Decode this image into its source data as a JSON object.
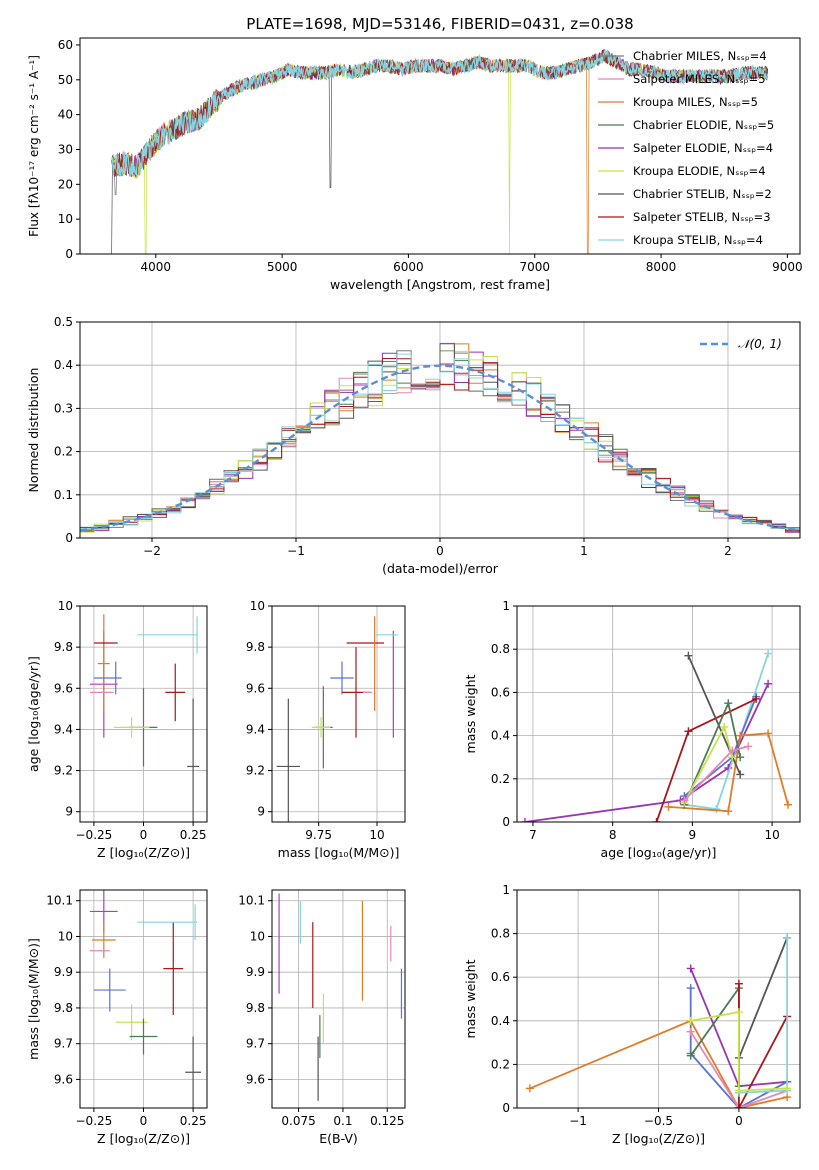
{
  "figure_title": "PLATE=1698, MJD=53146, FIBERID=0431, z=0.038",
  "model_colors": [
    "#7a7a7a",
    "#e887b6",
    "#e07b28",
    "#4f7a55",
    "#9a32b4",
    "#c8e34a",
    "#555555",
    "#a8171c",
    "#86d4e0"
  ],
  "chart_data": [
    {
      "id": "spectrum",
      "type": "line",
      "title": "PLATE=1698, MJD=53146, FIBERID=0431, z=0.038",
      "xlabel": "wavelength [Angstrom, rest frame]",
      "ylabel": "Flux [fλ10⁻¹⁷ erg cm⁻² s⁻¹ A⁻¹]",
      "xlim": [
        3400,
        9100
      ],
      "ylim": [
        0,
        62
      ],
      "xticks": [
        4000,
        5000,
        6000,
        7000,
        8000,
        9000
      ],
      "yticks": [
        0,
        10,
        20,
        30,
        40,
        50,
        60
      ],
      "legend_position": "upper right",
      "legend": [
        "Chabrier MILES, Nₛₛₚ=4",
        "Salpeter MILES, Nₛₛₚ=5",
        "Kroupa MILES, Nₛₛₚ=5",
        "Chabrier ELODIE, Nₛₛₚ=5",
        "Salpeter ELODIE, Nₛₛₚ=4",
        "Kroupa ELODIE, Nₛₛₚ=4",
        "Chabrier STELIB, Nₛₛₚ=2",
        "Salpeter STELIB, Nₛₛₚ=3",
        "Kroupa STELIB, Nₛₛₚ=4"
      ],
      "continuum": [
        [
          3650,
          25
        ],
        [
          3750,
          26
        ],
        [
          3850,
          25
        ],
        [
          3950,
          30
        ],
        [
          4050,
          34
        ],
        [
          4150,
          36
        ],
        [
          4250,
          38
        ],
        [
          4350,
          39
        ],
        [
          4450,
          43
        ],
        [
          4550,
          46
        ],
        [
          4650,
          48
        ],
        [
          4750,
          49
        ],
        [
          4850,
          50
        ],
        [
          4950,
          51
        ],
        [
          5050,
          53
        ],
        [
          5150,
          52
        ],
        [
          5250,
          52
        ],
        [
          5350,
          52
        ],
        [
          5450,
          53
        ],
        [
          5550,
          52
        ],
        [
          5650,
          53
        ],
        [
          5750,
          54
        ],
        [
          5850,
          54
        ],
        [
          5950,
          53
        ],
        [
          6050,
          54
        ],
        [
          6150,
          54
        ],
        [
          6250,
          54
        ],
        [
          6350,
          53
        ],
        [
          6450,
          54
        ],
        [
          6550,
          55
        ],
        [
          6650,
          54
        ],
        [
          6750,
          54
        ],
        [
          6850,
          54
        ],
        [
          6950,
          54
        ],
        [
          7050,
          52
        ],
        [
          7150,
          52
        ],
        [
          7250,
          53
        ],
        [
          7350,
          54
        ],
        [
          7450,
          55
        ],
        [
          7550,
          57
        ],
        [
          7650,
          55
        ],
        [
          7750,
          53
        ],
        [
          7850,
          53
        ],
        [
          7950,
          52
        ],
        [
          8050,
          51
        ],
        [
          8150,
          51
        ],
        [
          8250,
          51
        ],
        [
          8350,
          51
        ],
        [
          8450,
          51
        ],
        [
          8550,
          51
        ],
        [
          8650,
          52
        ],
        [
          8750,
          52
        ],
        [
          8850,
          52
        ]
      ],
      "drops": [
        {
          "model": 6,
          "x": 3650,
          "y": 0
        },
        {
          "model": 0,
          "x": 3680,
          "y": 17
        },
        {
          "model": 5,
          "x": 3920,
          "y": 0
        },
        {
          "model": 6,
          "x": 5380,
          "y": 19
        },
        {
          "model": 5,
          "x": 6800,
          "y": 0
        },
        {
          "model": 2,
          "x": 7420,
          "y": 0
        }
      ]
    },
    {
      "id": "residuals",
      "type": "step",
      "xlabel": "(data-model)/error",
      "ylabel": "Normed distribution",
      "xlim": [
        -2.5,
        2.5
      ],
      "ylim": [
        0,
        0.5
      ],
      "xticks": [
        -2,
        -1,
        0,
        1,
        2
      ],
      "yticks": [
        0.0,
        0.1,
        0.2,
        0.3,
        0.4,
        0.5
      ],
      "legend_position": "upper right",
      "grid": true,
      "reference_curve": {
        "name": "𝒩(0, 1)",
        "mean": 0,
        "sigma": 1,
        "color": "#5a8fd6"
      },
      "bin_width": 0.1
    },
    {
      "id": "age-vs-Z",
      "type": "errorbar",
      "xlabel": "Z [log₁₀(Z/Z⊙)]",
      "ylabel": "age  [log₁₀(age/yr)]",
      "xlim": [
        -0.32,
        0.32
      ],
      "ylim": [
        8.95,
        10.0
      ],
      "xticks": [
        -0.25,
        0.0,
        0.25
      ],
      "yticks": [
        9.0,
        9.2,
        9.4,
        9.6,
        9.8,
        10.0
      ],
      "grid": true,
      "points": [
        {
          "c": "#b03cc0",
          "x": -0.2,
          "y": 9.62,
          "xe": 0.07,
          "ye": 0.26
        },
        {
          "c": "#e07b28",
          "x": -0.2,
          "y": 9.72,
          "xe": 0.03,
          "ye": 0.24
        },
        {
          "c": "#a8171c",
          "x": -0.19,
          "y": 9.82,
          "xe": 0.06,
          "ye": 0.0
        },
        {
          "c": "#5a73d4",
          "x": -0.18,
          "y": 9.65,
          "xe": 0.07,
          "ye": 0.0
        },
        {
          "c": "#4f7a55",
          "x": 0.0,
          "y": 9.41,
          "xe": 0.07,
          "ye": 0.19
        },
        {
          "c": "#c8e34a",
          "x": -0.06,
          "y": 9.41,
          "xe": 0.09,
          "ye": 0.05
        },
        {
          "c": "#a8171c",
          "x": 0.16,
          "y": 9.58,
          "xe": 0.05,
          "ye": 0.14
        },
        {
          "c": "#86d4e0",
          "x": 0.12,
          "y": 9.86,
          "xe": 0.15,
          "ye": 0.0
        },
        {
          "c": "#86d4e0",
          "x": 0.27,
          "y": 9.86,
          "xe": 0.0,
          "ye": 0.09
        },
        {
          "c": "#555555",
          "x": 0.25,
          "y": 9.22,
          "xe": 0.03,
          "ye": 0.33
        },
        {
          "c": "#e887b6",
          "x": -0.21,
          "y": 9.58,
          "xe": 0.06,
          "ye": 0.0
        },
        {
          "c": "#5a73d4",
          "x": -0.14,
          "y": 9.65,
          "xe": 0.0,
          "ye": 0.08
        }
      ]
    },
    {
      "id": "age-vs-mass",
      "type": "errorbar",
      "xlabel": "mass [log₁₀(M/M⊙)]",
      "ylabel": "",
      "xlim": [
        9.55,
        10.12
      ],
      "ylim": [
        8.95,
        10.0
      ],
      "xticks": [
        9.75,
        10.0
      ],
      "yticks": [
        9.0,
        9.2,
        9.4,
        9.6,
        9.8,
        10.0
      ],
      "grid": true,
      "points": [
        {
          "c": "#555555",
          "x": 9.62,
          "y": 9.22,
          "xe": 0.05,
          "ye": 0.33
        },
        {
          "c": "#4f7a55",
          "x": 9.77,
          "y": 9.41,
          "xe": 0.04,
          "ye": 0.2
        },
        {
          "c": "#c8e34a",
          "x": 9.76,
          "y": 9.41,
          "xe": 0.04,
          "ye": 0.05
        },
        {
          "c": "#5a73d4",
          "x": 9.85,
          "y": 9.65,
          "xe": 0.05,
          "ye": 0.08
        },
        {
          "c": "#a8171c",
          "x": 9.91,
          "y": 9.58,
          "xe": 0.06,
          "ye": 0.22
        },
        {
          "c": "#a8171c",
          "x": 9.95,
          "y": 9.82,
          "xe": 0.08,
          "ye": 0.0
        },
        {
          "c": "#e07b28",
          "x": 9.99,
          "y": 9.72,
          "xe": 0.0,
          "ye": 0.23
        },
        {
          "c": "#b03cc0",
          "x": 10.07,
          "y": 9.62,
          "xe": 0.0,
          "ye": 0.26
        },
        {
          "c": "#86d4e0",
          "x": 10.04,
          "y": 9.86,
          "xe": 0.05,
          "ye": 0.0
        },
        {
          "c": "#e887b6",
          "x": 9.96,
          "y": 9.58,
          "xe": 0.02,
          "ye": 0.0
        }
      ]
    },
    {
      "id": "weight-vs-age",
      "type": "line",
      "xlabel": "age  [log₁₀(age/yr)]",
      "ylabel": "mass weight",
      "xlim": [
        6.8,
        10.35
      ],
      "ylim": [
        0,
        1.0
      ],
      "xticks": [
        7,
        8,
        9,
        10
      ],
      "yticks": [
        0.0,
        0.2,
        0.4,
        0.6,
        0.8,
        1.0
      ],
      "grid": true,
      "series": [
        {
          "c": "#9a32b4",
          "pts": [
            [
              6.9,
              0.0
            ],
            [
              8.85,
              0.1
            ],
            [
              9.45,
              0.25
            ],
            [
              9.95,
              0.64
            ]
          ]
        },
        {
          "c": "#86d4e0",
          "pts": [
            [
              8.9,
              0.08
            ],
            [
              9.3,
              0.06
            ],
            [
              9.95,
              0.78
            ]
          ]
        },
        {
          "c": "#5a73d4",
          "pts": [
            [
              8.9,
              0.12
            ],
            [
              9.5,
              0.3
            ],
            [
              9.8,
              0.58
            ]
          ]
        },
        {
          "c": "#e07b28",
          "pts": [
            [
              8.7,
              0.07
            ],
            [
              9.45,
              0.05
            ],
            [
              9.6,
              0.4
            ],
            [
              9.95,
              0.41
            ],
            [
              10.2,
              0.08
            ]
          ]
        },
        {
          "c": "#a8171c",
          "pts": [
            [
              8.55,
              0.0
            ],
            [
              8.95,
              0.42
            ],
            [
              9.8,
              0.57
            ]
          ]
        },
        {
          "c": "#555555",
          "pts": [
            [
              8.95,
              0.77
            ],
            [
              9.6,
              0.22
            ]
          ]
        },
        {
          "c": "#4f7a55",
          "pts": [
            [
              8.9,
              0.08
            ],
            [
              9.45,
              0.55
            ],
            [
              9.6,
              0.3
            ]
          ]
        },
        {
          "c": "#c8e34a",
          "pts": [
            [
              8.9,
              0.09
            ],
            [
              9.4,
              0.44
            ],
            [
              9.5,
              0.3
            ]
          ]
        },
        {
          "c": "#e887b6",
          "pts": [
            [
              8.9,
              0.1
            ],
            [
              9.5,
              0.33
            ],
            [
              9.7,
              0.35
            ]
          ]
        }
      ]
    },
    {
      "id": "mass-vs-Z",
      "type": "errorbar",
      "xlabel": "Z [log₁₀(Z/Z⊙)]",
      "ylabel": "mass [log₁₀(M/M⊙)]",
      "xlim": [
        -0.32,
        0.32
      ],
      "ylim": [
        9.52,
        10.13
      ],
      "xticks": [
        -0.25,
        0.0,
        0.25
      ],
      "yticks": [
        9.6,
        9.7,
        9.8,
        9.9,
        10.0,
        10.1
      ],
      "grid": true,
      "points": [
        {
          "c": "#b03cc0",
          "x": -0.2,
          "y": 10.07,
          "xe": 0.07,
          "ye": 0.06
        },
        {
          "c": "#e07b28",
          "x": -0.2,
          "y": 9.99,
          "xe": 0.06,
          "ye": 0.05
        },
        {
          "c": "#e887b6",
          "x": -0.22,
          "y": 9.96,
          "xe": 0.05,
          "ye": 0.0
        },
        {
          "c": "#5a73d4",
          "x": -0.17,
          "y": 9.85,
          "xe": 0.08,
          "ye": 0.06
        },
        {
          "c": "#c8e34a",
          "x": -0.06,
          "y": 9.76,
          "xe": 0.08,
          "ye": 0.05
        },
        {
          "c": "#4f7a55",
          "x": 0.0,
          "y": 9.72,
          "xe": 0.07,
          "ye": 0.05
        },
        {
          "c": "#a8171c",
          "x": 0.15,
          "y": 9.91,
          "xe": 0.05,
          "ye": 0.13
        },
        {
          "c": "#86d4e0",
          "x": 0.12,
          "y": 10.04,
          "xe": 0.15,
          "ye": 0.0
        },
        {
          "c": "#86d4e0",
          "x": 0.26,
          "y": 10.04,
          "xe": 0.0,
          "ye": 0.05
        },
        {
          "c": "#555555",
          "x": 0.25,
          "y": 9.62,
          "xe": 0.04,
          "ye": 0.1
        }
      ]
    },
    {
      "id": "mass-vs-EBV",
      "type": "errorbar",
      "xlabel": "E(B-V)",
      "ylabel": "",
      "xlim": [
        0.06,
        0.135
      ],
      "ylim": [
        9.52,
        10.13
      ],
      "xticks": [
        0.075,
        0.1,
        0.125
      ],
      "yticks": [
        9.6,
        9.7,
        9.8,
        9.9,
        10.0,
        10.1
      ],
      "grid": true,
      "points": [
        {
          "c": "#b03cc0",
          "x": 0.064,
          "y": 9.98,
          "xe": 0.0,
          "ye": 0.14
        },
        {
          "c": "#86d4e0",
          "x": 0.076,
          "y": 10.04,
          "xe": 0.0,
          "ye": 0.06
        },
        {
          "c": "#a8171c",
          "x": 0.083,
          "y": 9.92,
          "xe": 0.0,
          "ye": 0.12
        },
        {
          "c": "#555555",
          "x": 0.086,
          "y": 9.63,
          "xe": 0.0,
          "ye": 0.09
        },
        {
          "c": "#4f7a55",
          "x": 0.087,
          "y": 9.72,
          "xe": 0.0,
          "ye": 0.06
        },
        {
          "c": "#c8e34a",
          "x": 0.089,
          "y": 9.77,
          "xe": 0.0,
          "ye": 0.07
        },
        {
          "c": "#e07b28",
          "x": 0.111,
          "y": 9.96,
          "xe": 0.0,
          "ye": 0.14
        },
        {
          "c": "#e887b6",
          "x": 0.127,
          "y": 9.98,
          "xe": 0.0,
          "ye": 0.05
        },
        {
          "c": "#5a73d4",
          "x": 0.133,
          "y": 9.84,
          "xe": 0.0,
          "ye": 0.07
        }
      ]
    },
    {
      "id": "weight-vs-Z",
      "type": "line",
      "xlabel": "Z [log₁₀(Z/Z⊙)]",
      "ylabel": "mass weight",
      "xlim": [
        -1.38,
        0.38
      ],
      "ylim": [
        0,
        1.0
      ],
      "xticks": [
        -1.0,
        -0.5,
        0.0
      ],
      "yticks": [
        0.0,
        0.2,
        0.4,
        0.6,
        0.8,
        1.0
      ],
      "grid": true,
      "series": [
        {
          "c": "#e07b28",
          "pts": [
            [
              -1.3,
              0.09
            ],
            [
              -0.3,
              0.4
            ],
            [
              0.0,
              0.0
            ],
            [
              0.3,
              0.05
            ]
          ]
        },
        {
          "c": "#9a32b4",
          "pts": [
            [
              -0.3,
              0.64
            ],
            [
              0.0,
              0.1
            ],
            [
              0.3,
              0.12
            ]
          ]
        },
        {
          "c": "#5a73d4",
          "pts": [
            [
              -0.3,
              0.55
            ],
            [
              -0.3,
              0.25
            ],
            [
              0.0,
              0.0
            ],
            [
              0.3,
              0.12
            ]
          ]
        },
        {
          "c": "#e887b6",
          "pts": [
            [
              -0.3,
              0.35
            ],
            [
              0.0,
              0.0
            ],
            [
              0.3,
              0.08
            ]
          ]
        },
        {
          "c": "#4f7a55",
          "pts": [
            [
              -0.3,
              0.24
            ],
            [
              0.0,
              0.55
            ],
            [
              0.0,
              0.1
            ]
          ]
        },
        {
          "c": "#a8171c",
          "pts": [
            [
              0.0,
              0.57
            ],
            [
              0.0,
              0.0
            ],
            [
              0.3,
              0.42
            ]
          ]
        },
        {
          "c": "#555555",
          "pts": [
            [
              0.0,
              0.23
            ],
            [
              0.3,
              0.78
            ]
          ]
        },
        {
          "c": "#86d4e0",
          "pts": [
            [
              0.0,
              0.07
            ],
            [
              0.3,
              0.08
            ],
            [
              0.3,
              0.78
            ]
          ]
        },
        {
          "c": "#c8e34a",
          "pts": [
            [
              -0.3,
              0.4
            ],
            [
              0.0,
              0.44
            ],
            [
              0.0,
              0.08
            ],
            [
              0.3,
              0.09
            ]
          ]
        }
      ]
    }
  ]
}
